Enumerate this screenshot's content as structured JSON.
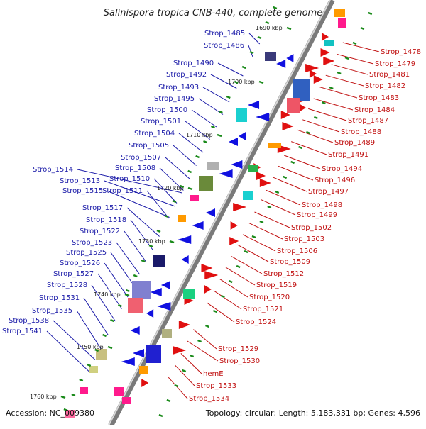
{
  "title": "Salinispora tropica CNB-440, complete genome",
  "footer": {
    "accession": "Accession: NC_009380",
    "summary": "Topology: circular; Length: 5,183,331 bp; Genes: 4,596"
  },
  "kbp_ticks": [
    "1690 kbp",
    "1700 kbp",
    "1710 kbp",
    "1720 kbp",
    "1730 kbp",
    "1740 kbp",
    "1750 kbp",
    "1760 kbp"
  ],
  "left_labels": [
    "Strop_1485",
    "Strop_1486",
    "Strop_1490",
    "Strop_1492",
    "Strop_1493",
    "Strop_1495",
    "Strop_1500",
    "Strop_1501",
    "Strop_1504",
    "Strop_1505",
    "Strop_1507",
    "Strop_1508",
    "Strop_1514",
    "Strop_1510",
    "Strop_1513",
    "Strop_1515",
    "Strop_1511",
    "Strop_1517",
    "Strop_1518",
    "Strop_1522",
    "Strop_1523",
    "Strop_1525",
    "Strop_1526",
    "Strop_1527",
    "Strop_1528",
    "Strop_1531",
    "Strop_1535",
    "Strop_1538",
    "Strop_1541"
  ],
  "right_labels": [
    "Strop_1478",
    "Strop_1479",
    "Strop_1481",
    "Strop_1482",
    "Strop_1483",
    "Strop_1484",
    "Strop_1487",
    "Strop_1488",
    "Strop_1489",
    "Strop_1491",
    "Strop_1494",
    "Strop_1496",
    "Strop_1497",
    "Strop_1498",
    "Strop_1499",
    "Strop_1502",
    "Strop_1503",
    "Strop_1506",
    "Strop_1509",
    "Strop_1512",
    "Strop_1519",
    "Strop_1520",
    "Strop_1521",
    "Strop_1524",
    "Strop_1529",
    "Strop_1530",
    "hemE",
    "Strop_1533",
    "Strop_1534"
  ],
  "colors": {
    "reverse_strand": "#1010e0",
    "forward_strand": "#e01010",
    "left_label": "#1a1aa8",
    "right_label": "#c01010",
    "axis": "#888888",
    "tick": "#1a8a1a"
  }
}
